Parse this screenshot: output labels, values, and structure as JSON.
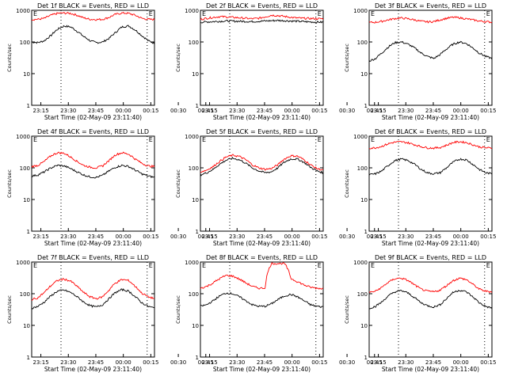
{
  "figure": {
    "x_tick_labels": [
      "23:15",
      "23:30",
      "23:45",
      "00:00",
      "00:15",
      "00:30",
      "00:45"
    ],
    "y_tick_labels": [
      "1",
      "10",
      "100",
      "1000"
    ],
    "ylabel": "Counts/sec",
    "xlabel": "Start Time (02-May-09 23:11:40)",
    "marker_labels": [
      "E",
      "E"
    ],
    "colors": {
      "events": "#000000",
      "lld": "#ff0000",
      "background": "#ffffff",
      "dotted": "#000000"
    }
  },
  "chart_data": [
    {
      "type": "line",
      "title": "Det 1f BLACK = Events, RED = LLD",
      "ylim": [
        1,
        1000
      ],
      "yscale": "log",
      "x_range_min": [
        -5,
        62
      ],
      "markers_min": [
        11,
        58
      ],
      "series": [
        {
          "name": "BLACK = Events",
          "values": [
            100,
            95,
            110,
            160,
            250,
            320,
            300,
            220,
            150,
            110,
            95,
            100,
            130,
            200,
            300,
            320,
            240,
            160,
            110,
            90
          ]
        },
        {
          "name": "RED = LLD",
          "values": [
            510,
            520,
            560,
            700,
            800,
            820,
            800,
            700,
            580,
            520,
            510,
            520,
            600,
            750,
            820,
            800,
            700,
            560,
            520,
            510
          ]
        }
      ]
    },
    {
      "type": "line",
      "title": "Det 2f BLACK = Events, RED = LLD",
      "ylim": [
        1,
        1000
      ],
      "yscale": "log",
      "x_range_min": [
        -5,
        62
      ],
      "markers_min": [
        11,
        58
      ],
      "series": [
        {
          "name": "BLACK = Events",
          "values": [
            420,
            430,
            440,
            450,
            460,
            455,
            450,
            445,
            440,
            450,
            460,
            470,
            480,
            470,
            460,
            450,
            440,
            430,
            425,
            420
          ]
        },
        {
          "name": "RED = LLD",
          "values": [
            520,
            560,
            600,
            630,
            620,
            600,
            580,
            560,
            540,
            560,
            620,
            700,
            680,
            640,
            600,
            570,
            560,
            550,
            545,
            540
          ]
        }
      ]
    },
    {
      "type": "line",
      "title": "Det 3f BLACK = Events, RED = LLD",
      "ylim": [
        1,
        1000
      ],
      "yscale": "log",
      "x_range_min": [
        -5,
        62
      ],
      "markers_min": [
        11,
        58
      ],
      "series": [
        {
          "name": "BLACK = Events",
          "values": [
            25,
            30,
            45,
            70,
            95,
            100,
            85,
            65,
            45,
            35,
            30,
            40,
            60,
            85,
            100,
            90,
            65,
            45,
            35,
            30
          ]
        },
        {
          "name": "RED = LLD",
          "values": [
            410,
            420,
            450,
            500,
            550,
            570,
            540,
            500,
            450,
            430,
            440,
            500,
            560,
            600,
            580,
            540,
            500,
            460,
            440,
            420
          ]
        }
      ]
    },
    {
      "type": "line",
      "title": "Det 4f BLACK = Events, RED = LLD",
      "ylim": [
        1,
        1000
      ],
      "yscale": "log",
      "x_range_min": [
        -5,
        62
      ],
      "markers_min": [
        11,
        58
      ],
      "series": [
        {
          "name": "BLACK = Events",
          "values": [
            55,
            60,
            75,
            100,
            120,
            115,
            95,
            75,
            60,
            52,
            50,
            58,
            80,
            105,
            120,
            110,
            85,
            65,
            55,
            50
          ]
        },
        {
          "name": "RED = LLD",
          "values": [
            110,
            120,
            160,
            240,
            300,
            290,
            220,
            160,
            120,
            105,
            100,
            115,
            170,
            260,
            300,
            270,
            190,
            140,
            115,
            110
          ]
        }
      ]
    },
    {
      "type": "line",
      "title": "Det 5f BLACK = Events, RED = LLD",
      "ylim": [
        1,
        1000
      ],
      "yscale": "log",
      "x_range_min": [
        -5,
        62
      ],
      "markers_min": [
        11,
        58
      ],
      "series": [
        {
          "name": "BLACK = Events",
          "values": [
            60,
            70,
            90,
            130,
            175,
            200,
            180,
            140,
            100,
            80,
            70,
            75,
            100,
            150,
            190,
            190,
            150,
            105,
            80,
            70
          ]
        },
        {
          "name": "RED = LLD",
          "values": [
            75,
            85,
            110,
            160,
            220,
            250,
            230,
            180,
            125,
            100,
            90,
            95,
            125,
            190,
            240,
            235,
            180,
            125,
            95,
            85
          ]
        }
      ]
    },
    {
      "type": "line",
      "title": "Det 6f BLACK = Events, RED = LLD",
      "ylim": [
        1,
        1000
      ],
      "yscale": "log",
      "x_range_min": [
        -5,
        62
      ],
      "markers_min": [
        11,
        58
      ],
      "series": [
        {
          "name": "BLACK = Events",
          "values": [
            60,
            65,
            80,
            120,
            170,
            190,
            170,
            130,
            90,
            70,
            65,
            70,
            100,
            150,
            190,
            180,
            130,
            90,
            70,
            65
          ]
        },
        {
          "name": "RED = LLD",
          "values": [
            420,
            430,
            480,
            580,
            650,
            660,
            620,
            540,
            470,
            430,
            420,
            440,
            520,
            630,
            670,
            630,
            540,
            460,
            430,
            420
          ]
        }
      ]
    },
    {
      "type": "line",
      "title": "Det 7f BLACK = Events, RED = LLD",
      "ylim": [
        1,
        1000
      ],
      "yscale": "log",
      "x_range_min": [
        -5,
        62
      ],
      "markers_min": [
        11,
        58
      ],
      "series": [
        {
          "name": "BLACK = Events",
          "values": [
            35,
            40,
            55,
            85,
            120,
            130,
            110,
            80,
            55,
            42,
            38,
            45,
            70,
            110,
            135,
            120,
            80,
            52,
            40,
            35
          ]
        },
        {
          "name": "RED = LLD",
          "values": [
            65,
            75,
            110,
            180,
            260,
            290,
            250,
            170,
            110,
            80,
            70,
            80,
            130,
            220,
            280,
            260,
            170,
            105,
            80,
            70
          ]
        }
      ]
    },
    {
      "type": "line",
      "title": "Det 8f BLACK = Events, RED = LLD",
      "ylim": [
        1,
        1000
      ],
      "yscale": "log",
      "x_range_min": [
        -5,
        62
      ],
      "markers_min": [
        11,
        58
      ],
      "series": [
        {
          "name": "BLACK = Events",
          "values": [
            40,
            45,
            60,
            85,
            105,
            100,
            80,
            60,
            45,
            40,
            40,
            48,
            65,
            85,
            95,
            80,
            60,
            45,
            40,
            38
          ]
        },
        {
          "name": "RED = LLD",
          "values": [
            150,
            170,
            220,
            300,
            380,
            360,
            290,
            220,
            170,
            150,
            150,
            900,
            900,
            900,
            300,
            240,
            190,
            160,
            150,
            145
          ]
        }
      ]
    },
    {
      "type": "line",
      "title": "Det 9f BLACK = Events, RED = LLD",
      "ylim": [
        1,
        1000
      ],
      "yscale": "log",
      "x_range_min": [
        -5,
        62
      ],
      "markers_min": [
        11,
        58
      ],
      "series": [
        {
          "name": "BLACK = Events",
          "values": [
            35,
            40,
            55,
            85,
            115,
            125,
            105,
            75,
            52,
            42,
            38,
            45,
            70,
            110,
            130,
            115,
            80,
            52,
            40,
            35
          ]
        },
        {
          "name": "RED = LLD",
          "values": [
            110,
            120,
            160,
            230,
            300,
            310,
            260,
            190,
            140,
            120,
            115,
            130,
            180,
            260,
            310,
            280,
            200,
            140,
            120,
            115
          ]
        }
      ]
    }
  ]
}
